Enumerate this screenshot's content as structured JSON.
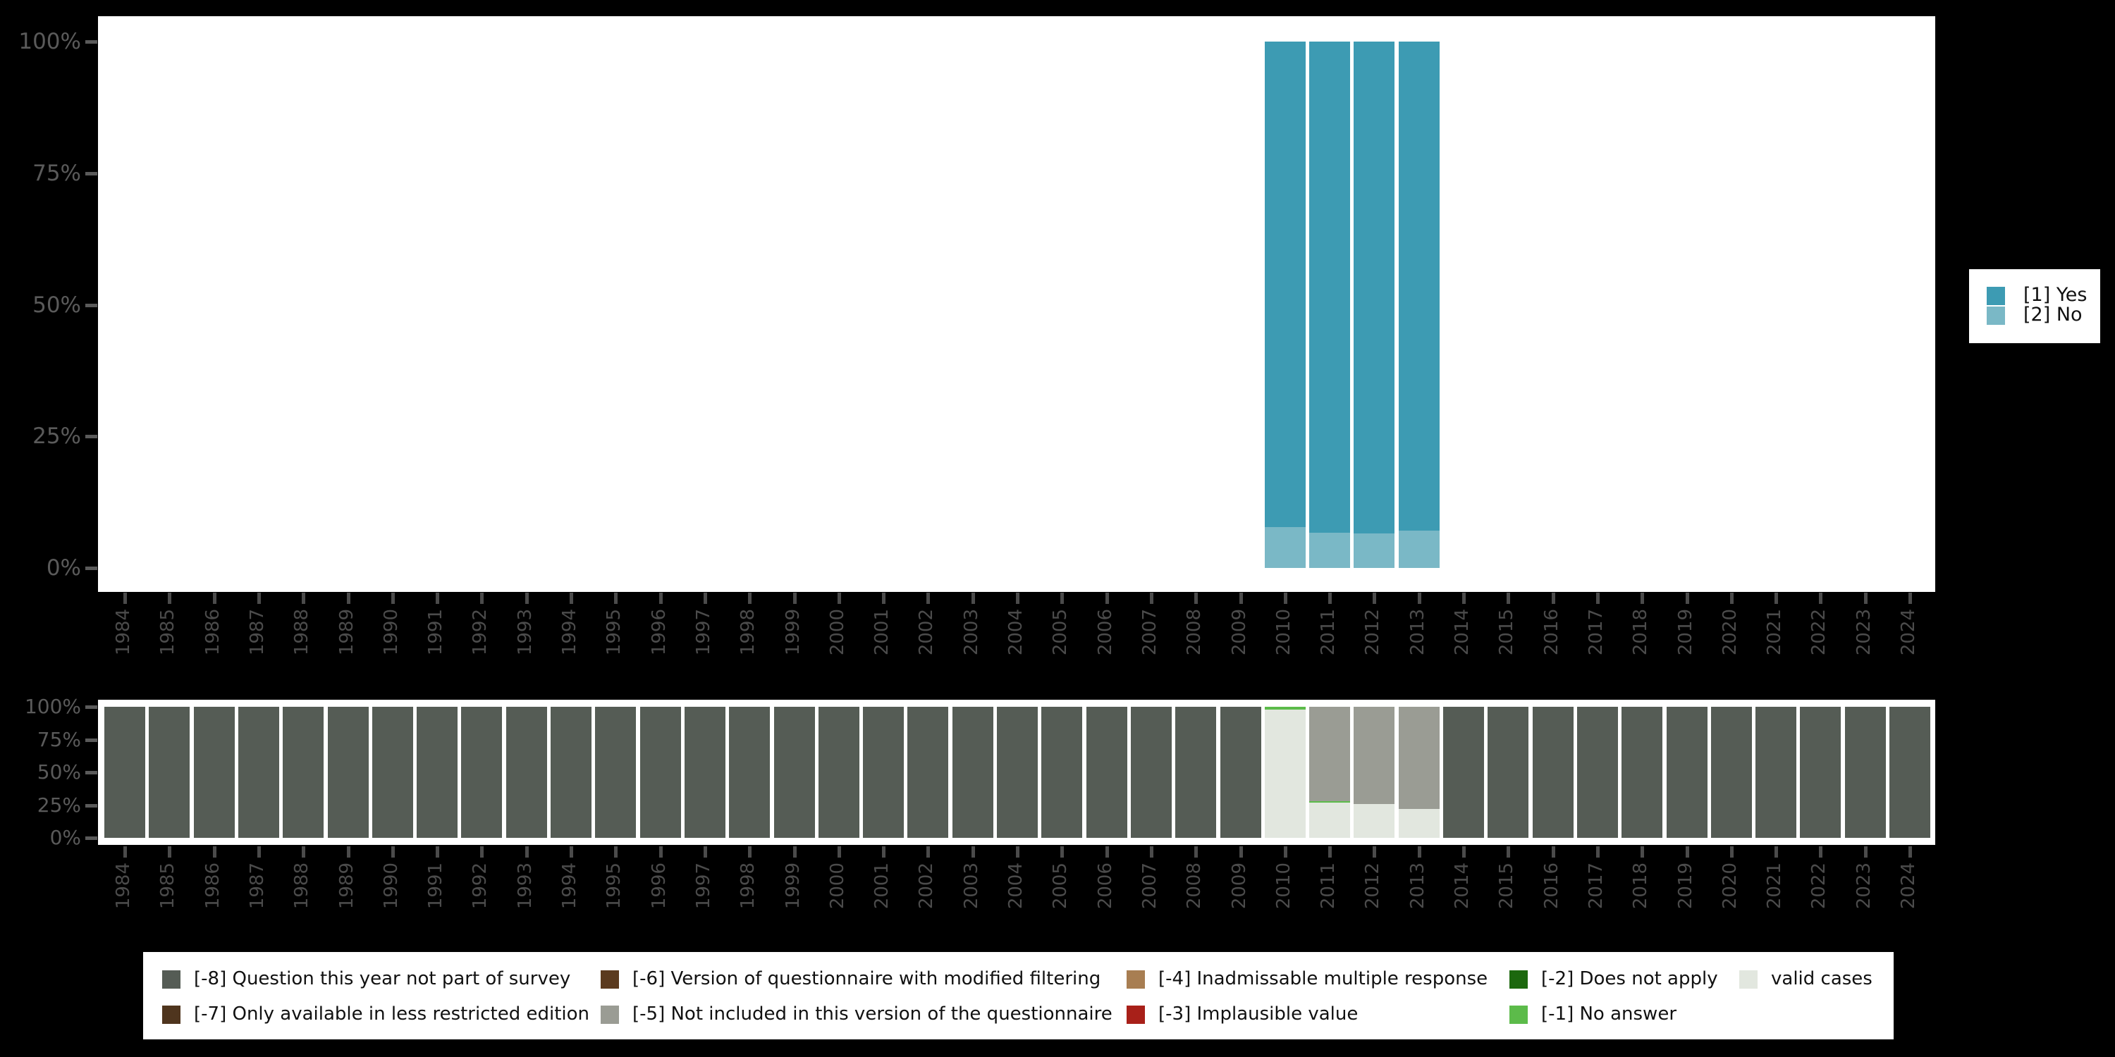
{
  "background_color": "#000000",
  "axis": {
    "x_label_color": "#4B4B4B",
    "y_label_color": "#5A5A5A",
    "plot_background": "#FFFFFF"
  },
  "chart_data": [
    {
      "type": "bar",
      "stacked": true,
      "title": "",
      "xlabel": "",
      "ylabel": "",
      "grid": false,
      "ylim": [
        0,
        100
      ],
      "y_tick_labels": [
        "0%",
        "25%",
        "50%",
        "75%",
        "100%"
      ],
      "x_years": [
        1984,
        1985,
        1986,
        1987,
        1988,
        1989,
        1990,
        1991,
        1992,
        1993,
        1994,
        1995,
        1996,
        1997,
        1998,
        1999,
        2000,
        2001,
        2002,
        2003,
        2004,
        2005,
        2006,
        2007,
        2008,
        2009,
        2010,
        2011,
        2012,
        2013,
        2014,
        2015,
        2016,
        2017,
        2018,
        2019,
        2020,
        2021,
        2022,
        2023,
        2024
      ],
      "legend_position": "right",
      "legend": [
        {
          "label": "[1] Yes",
          "color": "#3D9BB3"
        },
        {
          "label": "[2] No",
          "color": "#7AB8C6"
        }
      ],
      "series": [
        {
          "name": "[1] Yes",
          "color": "#3D9BB3",
          "values_by_year": {
            "2010": 92.2,
            "2011": 93.3,
            "2012": 93.5,
            "2013": 92.9
          }
        },
        {
          "name": "[2] No",
          "color": "#7AB8C6",
          "values_by_year": {
            "2010": 7.8,
            "2011": 6.7,
            "2012": 6.5,
            "2013": 7.1
          }
        }
      ]
    },
    {
      "type": "bar",
      "stacked": true,
      "title": "",
      "xlabel": "",
      "ylabel": "",
      "grid": false,
      "ylim": [
        0,
        100
      ],
      "y_tick_labels": [
        "0%",
        "25%",
        "50%",
        "75%",
        "100%"
      ],
      "x_years": [
        1984,
        1985,
        1986,
        1987,
        1988,
        1989,
        1990,
        1991,
        1992,
        1993,
        1994,
        1995,
        1996,
        1997,
        1998,
        1999,
        2000,
        2001,
        2002,
        2003,
        2004,
        2005,
        2006,
        2007,
        2008,
        2009,
        2010,
        2011,
        2012,
        2013,
        2014,
        2015,
        2016,
        2017,
        2018,
        2019,
        2020,
        2021,
        2022,
        2023,
        2024
      ],
      "legend_position": "bottom",
      "categories": [
        {
          "label": "[-8] Question this year not part of survey",
          "color": "#555C55"
        },
        {
          "label": "[-7] Only available in less restricted edition",
          "color": "#4F351E"
        },
        {
          "label": "[-6] Version of questionnaire with modified filtering",
          "color": "#5B3A1E"
        },
        {
          "label": "[-5] Not included in this version of the questionnaire",
          "color": "#9A9C94"
        },
        {
          "label": "[-4] Inadmissable multiple response",
          "color": "#A87E52"
        },
        {
          "label": "[-3] Implausible value",
          "color": "#A82019"
        },
        {
          "label": "[-2] Does not apply",
          "color": "#1C680E"
        },
        {
          "label": "[-1] No answer",
          "color": "#5CBB4A"
        },
        {
          "label": "valid cases",
          "color": "#E2E7DF"
        }
      ],
      "legend_columns": [
        [
          0,
          1
        ],
        [
          2,
          3
        ],
        [
          4,
          5
        ],
        [
          6,
          7
        ],
        [
          8
        ]
      ],
      "default_stack": [
        {
          "category": "[-8] Question this year not part of survey",
          "value": 100
        }
      ],
      "stacks_by_year": {
        "2010": [
          {
            "category": "[-1] No answer",
            "value": 2
          },
          {
            "category": "valid cases",
            "value": 98
          }
        ],
        "2011": [
          {
            "category": "[-5] Not included in this version of the questionnaire",
            "value": 72
          },
          {
            "category": "[-1] No answer",
            "value": 1
          },
          {
            "category": "valid cases",
            "value": 27
          }
        ],
        "2012": [
          {
            "category": "[-5] Not included in this version of the questionnaire",
            "value": 74
          },
          {
            "category": "valid cases",
            "value": 26
          }
        ],
        "2013": [
          {
            "category": "[-5] Not included in this version of the questionnaire",
            "value": 78
          },
          {
            "category": "valid cases",
            "value": 22
          }
        ]
      }
    }
  ]
}
